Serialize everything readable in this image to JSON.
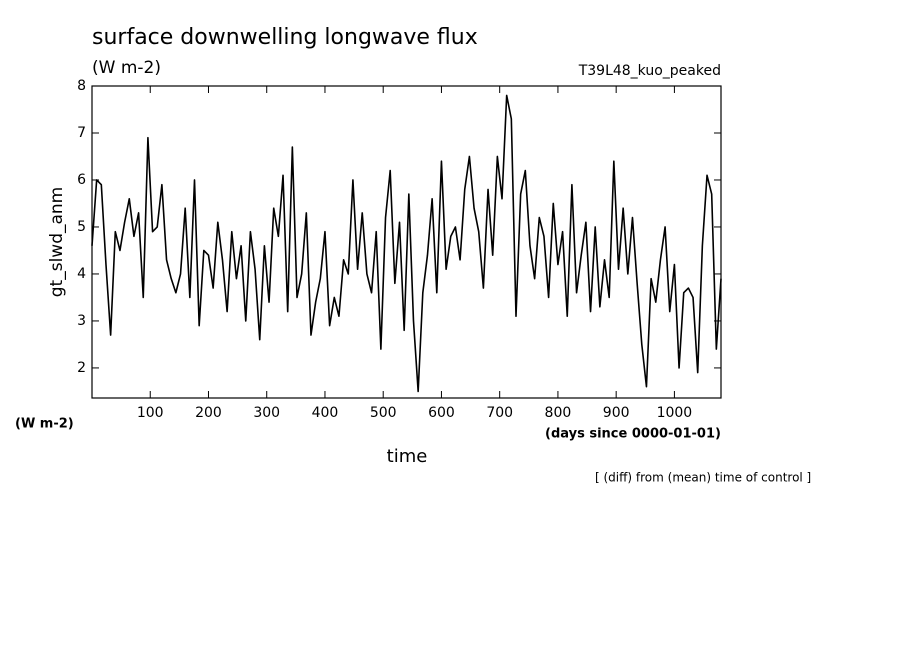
{
  "chart_data": {
    "type": "line",
    "title": "surface downwelling longwave flux",
    "units_top": "(W m-2)",
    "run_label": "T39L48_kuo_peaked",
    "y_label": "gt_slwd_anm",
    "units_bottom": "(W m-2)",
    "x_units": "(days since 0000-01-01)",
    "x_label": "time",
    "note": "[ (diff) from (mean) time of control ]",
    "xlim": [
      0,
      1080
    ],
    "ylim": [
      1.36,
      8
    ],
    "xticks": [
      100,
      200,
      300,
      400,
      500,
      600,
      700,
      800,
      900,
      1000
    ],
    "yticks": [
      2,
      3,
      4,
      5,
      6,
      7,
      8
    ],
    "x": [
      0,
      8,
      16,
      24,
      32,
      40,
      48,
      56,
      64,
      72,
      80,
      88,
      96,
      104,
      112,
      120,
      128,
      136,
      144,
      152,
      160,
      168,
      176,
      184,
      192,
      200,
      208,
      216,
      224,
      232,
      240,
      248,
      256,
      264,
      272,
      280,
      288,
      296,
      304,
      312,
      320,
      328,
      336,
      344,
      352,
      360,
      368,
      376,
      384,
      392,
      400,
      408,
      416,
      424,
      432,
      440,
      448,
      456,
      464,
      472,
      480,
      488,
      496,
      504,
      512,
      520,
      528,
      536,
      544,
      552,
      560,
      568,
      576,
      584,
      592,
      600,
      608,
      616,
      624,
      632,
      640,
      648,
      656,
      664,
      672,
      680,
      688,
      696,
      704,
      712,
      720,
      728,
      736,
      744,
      752,
      760,
      768,
      776,
      784,
      792,
      800,
      808,
      816,
      824,
      832,
      840,
      848,
      856,
      864,
      872,
      880,
      888,
      896,
      904,
      912,
      920,
      928,
      936,
      944,
      952,
      960,
      968,
      976,
      984,
      992,
      1000,
      1008,
      1016,
      1024,
      1032,
      1040,
      1048,
      1056,
      1064,
      1072,
      1080
    ],
    "series": [
      {
        "color": "#000000",
        "values": [
          4.6,
          6.0,
          5.9,
          4.2,
          2.7,
          4.9,
          4.5,
          5.1,
          5.6,
          4.8,
          5.3,
          3.5,
          6.9,
          4.9,
          5.0,
          5.9,
          4.3,
          3.9,
          3.6,
          4.0,
          5.4,
          3.5,
          6.0,
          2.9,
          4.5,
          4.4,
          3.7,
          5.1,
          4.3,
          3.2,
          4.9,
          3.9,
          4.6,
          3.0,
          4.9,
          4.1,
          2.6,
          4.6,
          3.4,
          5.4,
          4.8,
          6.1,
          3.2,
          6.7,
          3.5,
          4.0,
          5.3,
          2.7,
          3.4,
          3.9,
          4.9,
          2.9,
          3.5,
          3.1,
          4.3,
          4.0,
          6.0,
          4.1,
          5.3,
          4.0,
          3.6,
          4.9,
          2.4,
          5.2,
          6.2,
          3.8,
          5.1,
          2.8,
          5.7,
          3.0,
          1.5,
          3.6,
          4.4,
          5.6,
          3.6,
          6.4,
          4.1,
          4.8,
          5.0,
          4.3,
          5.8,
          6.5,
          5.4,
          4.9,
          3.7,
          5.8,
          4.4,
          6.5,
          5.6,
          7.8,
          7.3,
          3.1,
          5.7,
          6.2,
          4.6,
          3.9,
          5.2,
          4.8,
          3.5,
          5.5,
          4.2,
          4.9,
          3.1,
          5.9,
          3.6,
          4.4,
          5.1,
          3.2,
          5.0,
          3.3,
          4.3,
          3.5,
          6.4,
          4.1,
          5.4,
          4.0,
          5.2,
          3.8,
          2.5,
          1.6,
          3.9,
          3.4,
          4.3,
          5.0,
          3.2,
          4.2,
          2.0,
          3.6,
          3.7,
          3.5,
          1.9,
          4.6,
          6.1,
          5.7,
          2.4,
          3.9
        ]
      }
    ]
  }
}
